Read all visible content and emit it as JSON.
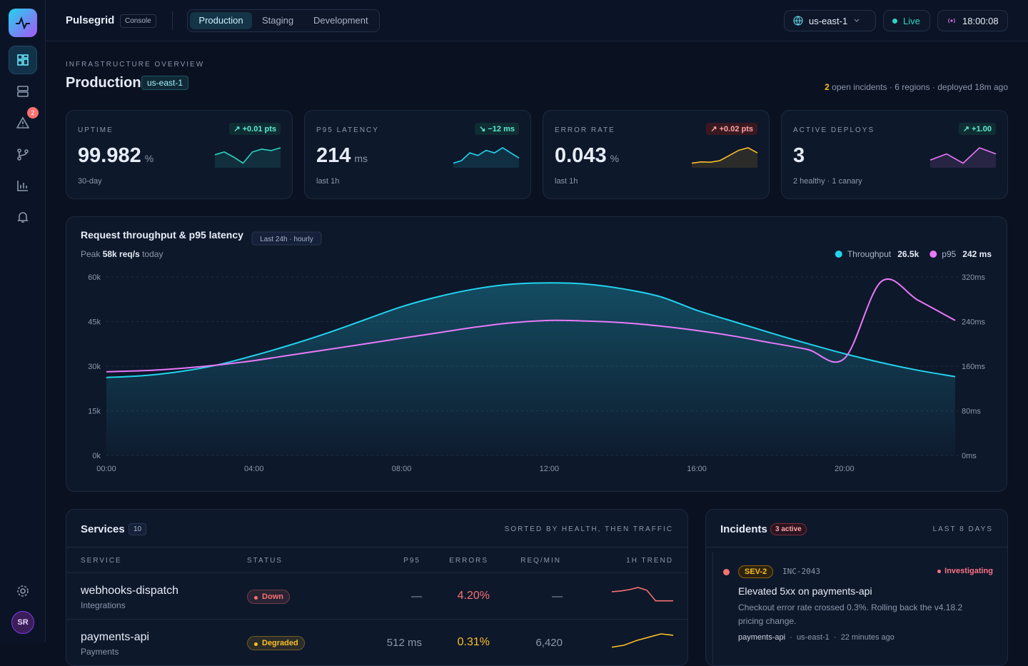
{
  "brand": {
    "name": "Pulsegrid",
    "badge": "Console"
  },
  "env_tabs": [
    "Production",
    "Staging",
    "Development"
  ],
  "topbar": {
    "region": "us-east-1",
    "status": "Live",
    "clock": "18:00:08"
  },
  "sidebar": {
    "alert_badge": 2,
    "avatar": "SR"
  },
  "header": {
    "eyebrow": "INFRASTRUCTURE OVERVIEW",
    "title": "Production",
    "region": "us-east-1",
    "open_incidents": 2,
    "summary": "open incidents · 6 regions · deployed 18m ago"
  },
  "kpis": [
    {
      "label": "UPTIME",
      "value": 99.982,
      "unit": "%",
      "delta": "↗ +0.01 pts",
      "sub": "30-day",
      "color": "#2dd4bf",
      "spark": [
        5,
        6,
        4.2,
        2,
        6,
        7,
        6.5,
        7.5
      ]
    },
    {
      "label": "P95 LATENCY",
      "value": 214,
      "unit": "ms",
      "delta": "↘ −12 ms",
      "sub": "last 1h",
      "color": "#22d3ee",
      "spark": [
        2,
        3,
        6,
        5,
        7,
        6,
        8,
        6,
        4
      ]
    },
    {
      "label": "ERROR RATE",
      "value": 0.043,
      "unit": "%",
      "delta": "↗ +0.02 pts",
      "sub": "last 1h",
      "color": "#fbbf24",
      "spark": [
        3,
        3.5,
        3.4,
        4,
        6,
        8,
        9,
        7
      ]
    },
    {
      "label": "ACTIVE DEPLOYS",
      "value": 3,
      "unit": "",
      "delta": "↗ +1.00",
      "sub": "2 healthy · 1 canary",
      "color": "#e879f9",
      "spark": [
        4,
        6,
        3,
        8,
        6
      ]
    }
  ],
  "chart_data": {
    "type": "line",
    "title": "Request throughput & p95 latency",
    "badge": "Last 24h · hourly",
    "subtitle": {
      "prefix": "Peak",
      "value": "58k req/s",
      "suffix": "today"
    },
    "categories": [
      "00:00",
      null,
      null,
      null,
      "04:00",
      null,
      null,
      null,
      "08:00",
      null,
      null,
      null,
      "12:00",
      null,
      null,
      null,
      "16:00",
      null,
      null,
      null,
      "20:00",
      null,
      null,
      null
    ],
    "series": [
      {
        "name": "Throughput",
        "legend_value": "26.5k",
        "color": "#22d3ee",
        "area": true,
        "values": [
          26200,
          26800,
          28200,
          30400,
          33600,
          37200,
          41200,
          45600,
          50000,
          53400,
          56000,
          57600,
          58000,
          57600,
          56000,
          53400,
          48800,
          45000,
          41200,
          37600,
          34200,
          31200,
          28600,
          26500
        ]
      },
      {
        "name": "p95",
        "legend_value": "242 ms",
        "color": "#e879f9",
        "axis": "y2",
        "values": [
          150,
          152,
          156,
          162,
          170,
          180,
          190,
          200,
          210,
          220,
          230,
          238,
          242,
          241,
          238,
          232,
          224,
          214,
          202,
          190,
          174,
          312,
          278,
          242
        ]
      }
    ],
    "ylim": [
      0,
      60000
    ],
    "yticks": [
      {
        "value": 0,
        "label": "0k"
      },
      {
        "value": 15000,
        "label": "15k"
      },
      {
        "value": 30000,
        "label": "30k"
      },
      {
        "value": 45000,
        "label": "45k"
      },
      {
        "value": 60000,
        "label": "60k"
      }
    ],
    "y2lim": [
      0,
      320
    ],
    "y2ticks": [
      {
        "value": 0,
        "label": "0ms"
      },
      {
        "value": 80,
        "label": "80ms"
      },
      {
        "value": 160,
        "label": "160ms"
      },
      {
        "value": 240,
        "label": "240ms"
      },
      {
        "value": 320,
        "label": "320ms"
      }
    ],
    "grid": true
  },
  "services": {
    "title": "Services",
    "count": 10,
    "sort_note": "SORTED BY HEALTH, THEN TRAFFIC",
    "columns": [
      "SERVICE",
      "STATUS",
      "P95",
      "ERRORS",
      "REQ/MIN",
      "1H TREND"
    ],
    "rows": [
      {
        "name": "webhooks-dispatch",
        "group": "Integrations",
        "status": "Down",
        "status_color": "#f87171",
        "p95": "—",
        "errors": "4.20%",
        "req": "—",
        "trend": [
          3,
          3.2,
          3.6,
          4.2,
          3.4,
          0.4,
          0.4,
          0.4
        ]
      },
      {
        "name": "payments-api",
        "group": "Payments",
        "status": "Degraded",
        "status_color": "#fbbf24",
        "p95": "512 ms",
        "errors": "0.31%",
        "req": "6,420",
        "trend": [
          1,
          1.6,
          3,
          4,
          5,
          4.6
        ]
      }
    ]
  },
  "incidents": {
    "title": "Incidents",
    "active": "3 active",
    "range": "LAST 8 DAYS",
    "items": [
      {
        "severity": "SEV-2",
        "id": "INC-2043",
        "state": "Investigating",
        "title": "Elevated 5xx on payments-api",
        "description": "Checkout error rate crossed 0.3%. Rolling back the v4.18.2 pricing change.",
        "meta": [
          "payments-api",
          "us-east-1",
          "22 minutes ago"
        ]
      }
    ]
  }
}
